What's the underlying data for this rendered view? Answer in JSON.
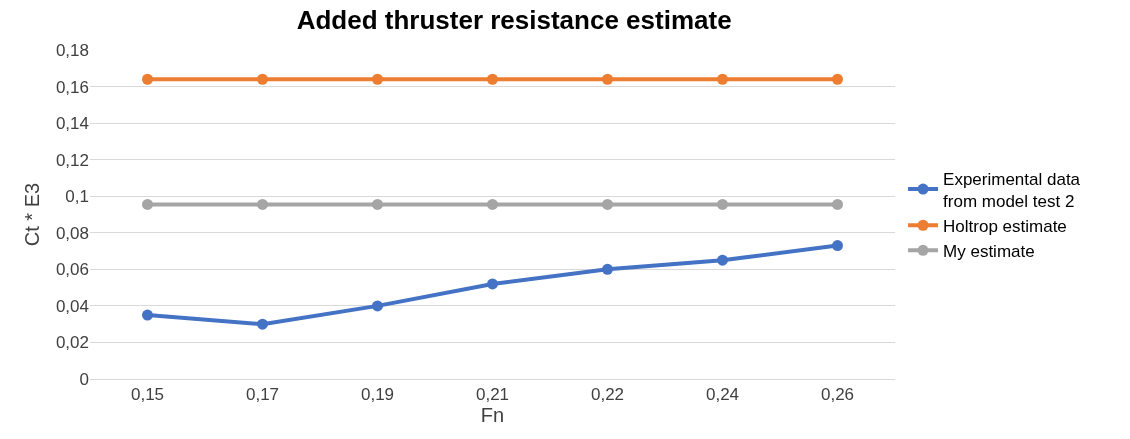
{
  "chart_data": {
    "type": "line",
    "title": "Added thruster resistance estimate",
    "xlabel": "Fn",
    "ylabel": "Ct * E3",
    "categories": [
      "0,15",
      "0,17",
      "0,19",
      "0,21",
      "0,22",
      "0,24",
      "0,26"
    ],
    "series": [
      {
        "name": "Experimental data from model test 2",
        "color": "#4472c4",
        "values": [
          0.035,
          0.03,
          0.04,
          0.052,
          0.06,
          0.065,
          0.073
        ]
      },
      {
        "name": "Holtrop estimate",
        "color": "#ed7d31",
        "values": [
          0.164,
          0.164,
          0.164,
          0.164,
          0.164,
          0.164,
          0.164
        ]
      },
      {
        "name": "My estimate",
        "color": "#a5a5a5",
        "values": [
          0.0955,
          0.0955,
          0.0955,
          0.0955,
          0.0955,
          0.0955,
          0.0955
        ]
      }
    ],
    "ylim": [
      0,
      0.18
    ],
    "yticks": [
      {
        "value": 0,
        "label": "0"
      },
      {
        "value": 0.02,
        "label": "0,02"
      },
      {
        "value": 0.04,
        "label": "0,04"
      },
      {
        "value": 0.06,
        "label": "0,06"
      },
      {
        "value": 0.08,
        "label": "0,08"
      },
      {
        "value": 0.1,
        "label": "0,1"
      },
      {
        "value": 0.12,
        "label": "0,12"
      },
      {
        "value": 0.14,
        "label": "0,14"
      },
      {
        "value": 0.16,
        "label": "0,16"
      },
      {
        "value": 0.18,
        "label": "0,18"
      }
    ],
    "grid": "y",
    "legend": "right",
    "marker": "circle",
    "line_style": "solid"
  }
}
